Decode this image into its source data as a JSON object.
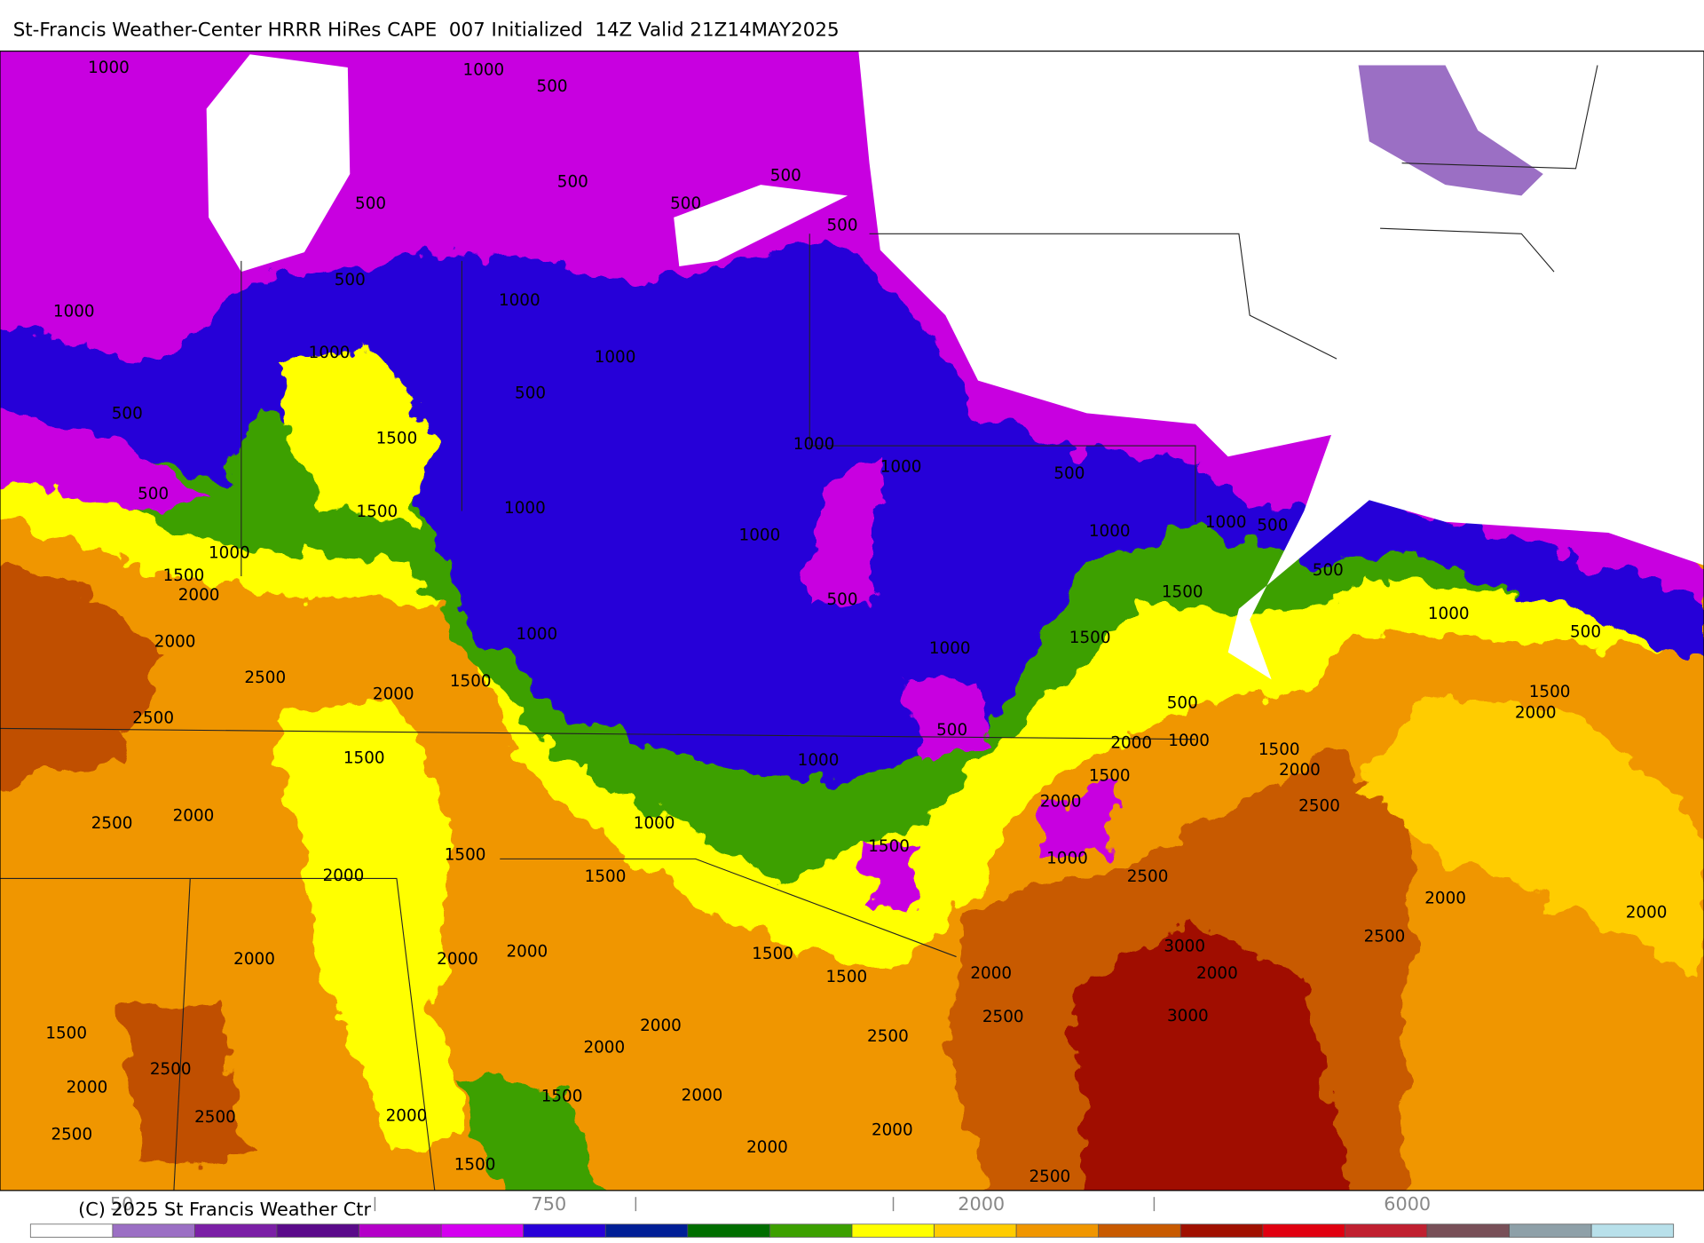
{
  "header": {
    "title": "St-Francis Weather-Center HRRR HiRes CAPE  007 Initialized  14Z Valid 21Z14MAY2025",
    "copyright": "(C) 2025 St Francis Weather Ctr"
  },
  "map": {
    "contour_labels": [
      1000,
      1000,
      500,
      500,
      500,
      500,
      500,
      500,
      500,
      1000,
      1000,
      1000,
      1000,
      500,
      500,
      1500,
      1000,
      1000,
      500,
      500,
      1500,
      1000,
      1000,
      1000,
      1000,
      500,
      1000,
      500,
      1500,
      2000,
      500,
      1500,
      1000,
      1000,
      1500,
      2000,
      500,
      1000,
      2500,
      1500,
      2000,
      1500,
      500,
      2000,
      2500,
      500,
      2000,
      1000,
      1500,
      1500,
      1000,
      1500,
      2000,
      2000,
      2500,
      2500,
      2000,
      1000,
      1500,
      1500,
      1000,
      1500,
      2000,
      2500,
      2000,
      2000,
      2500,
      3000,
      1500,
      2000,
      2000,
      2000,
      2000,
      2000,
      1500,
      2500,
      3000,
      2000,
      1500,
      2500,
      2000,
      2500,
      2000,
      2500,
      1500,
      2000,
      2000,
      2500,
      2000,
      2000,
      1500,
      2500
    ]
  },
  "colorbar": {
    "colors": [
      "#ffffff",
      "#9b6fc4",
      "#7b1fa6",
      "#5a0a8a",
      "#b400c8",
      "#d400f0",
      "#2800d8",
      "#001e96",
      "#006e00",
      "#3ca000",
      "#ffff00",
      "#ffcc00",
      "#f09600",
      "#c85a00",
      "#a01000",
      "#e00010",
      "#c02030",
      "#785058",
      "#8ea0a8",
      "#b8e0ea"
    ],
    "labels": [
      50,
      750,
      2000,
      6000
    ]
  }
}
